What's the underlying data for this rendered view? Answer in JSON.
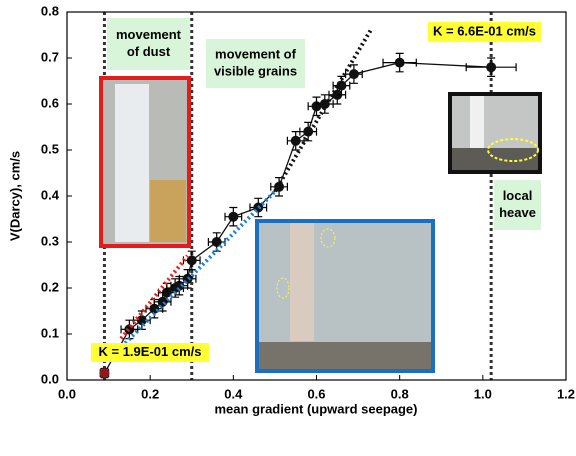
{
  "chart_data": {
    "type": "scatter",
    "xlabel": "mean gradient (upward seepage)",
    "ylabel": "V(Darcy), cm/s",
    "xlim": [
      0,
      1.2
    ],
    "ylim": [
      0,
      0.8
    ],
    "xticks": [
      {
        "value": 0,
        "label": "0.0"
      },
      0.2,
      0.4,
      0.6,
      0.8,
      {
        "value": 1,
        "label": "1.0"
      },
      1.2
    ],
    "yticks": [
      {
        "value": 0,
        "label": "0.0"
      },
      0.1,
      0.2,
      0.3,
      0.4,
      0.5,
      0.6,
      0.7,
      0.8
    ],
    "series": [
      {
        "color": "#111111",
        "style": "solid-markers",
        "x": [
          0.09,
          0.15,
          0.18,
          0.21,
          0.23,
          0.24,
          0.26,
          0.27,
          0.29,
          0.3,
          0.36,
          0.4,
          0.46,
          0.51,
          0.55,
          0.58,
          0.6,
          0.62,
          0.65,
          0.66,
          0.69,
          0.8,
          1.02
        ],
        "values": [
          0.015,
          0.11,
          0.13,
          0.155,
          0.17,
          0.19,
          0.2,
          0.205,
          0.22,
          0.26,
          0.3,
          0.355,
          0.375,
          0.42,
          0.52,
          0.54,
          0.595,
          0.6,
          0.62,
          0.64,
          0.665,
          0.69,
          0.68
        ],
        "xerr": [
          0.01,
          0.02,
          0.02,
          0.02,
          0.02,
          0.02,
          0.02,
          0.02,
          0.02,
          0.02,
          0.02,
          0.02,
          0.02,
          0.02,
          0.02,
          0.02,
          0.02,
          0.02,
          0.02,
          0.02,
          0.02,
          0.04,
          0.06
        ],
        "yerr": [
          0.01,
          0.02,
          0.02,
          0.02,
          0.02,
          0.02,
          0.02,
          0.02,
          0.02,
          0.02,
          0.02,
          0.02,
          0.02,
          0.02,
          0.02,
          0.02,
          0.02,
          0.02,
          0.02,
          0.02,
          0.02,
          0.02,
          0.02
        ]
      },
      {
        "color": "#e52020",
        "style": "dotted",
        "x": [
          0.13,
          0.29
        ],
        "values": [
          0.09,
          0.27
        ]
      },
      {
        "color": "#1e7fd0",
        "style": "dotted",
        "x": [
          0.14,
          0.5
        ],
        "values": [
          0.08,
          0.41
        ]
      },
      {
        "color": "#111111",
        "style": "dotted",
        "x": [
          0.5,
          0.73
        ],
        "values": [
          0.41,
          0.76
        ]
      }
    ],
    "vlines": [
      0.09,
      0.3,
      1.02
    ],
    "annotations": [
      {
        "lines": [
          "movement",
          "of dust"
        ],
        "color": "#d9f5d9"
      },
      {
        "lines": [
          "movement of",
          "visible grains"
        ],
        "color": "#d9f5d9"
      },
      {
        "lines": [
          "K = 6.6E-01 cm/s"
        ],
        "color": "#ffff33"
      },
      {
        "lines": [
          "local",
          "heave"
        ],
        "color": "#d9f5d9"
      },
      {
        "lines": [
          "K = 1.9E-01 cm/s"
        ],
        "color": "#ffff33"
      }
    ]
  }
}
